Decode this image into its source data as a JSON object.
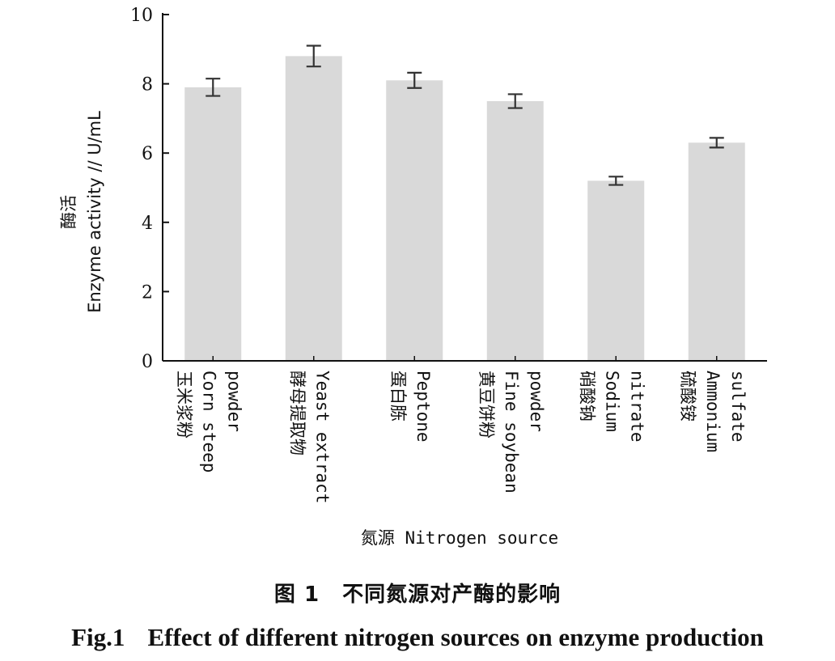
{
  "chart_data": {
    "type": "bar",
    "categories": [
      [
        "玉米浆粉",
        "Corn steep",
        "powder"
      ],
      [
        "酵母提取物",
        "Yeast extract"
      ],
      [
        "蛋白胨",
        "Peptone"
      ],
      [
        "黄豆饼粉",
        "Fine soybean",
        "powder"
      ],
      [
        "硝酸钠",
        "Sodium",
        "nitrate"
      ],
      [
        "硫酸铵",
        "Ammonium",
        "sulfate"
      ]
    ],
    "values": [
      7.9,
      8.8,
      8.1,
      7.5,
      5.2,
      6.3
    ],
    "errors": [
      0.25,
      0.3,
      0.22,
      0.2,
      0.12,
      0.14
    ],
    "ylim": [
      0,
      10
    ],
    "yticks": [
      0,
      2,
      4,
      6,
      8,
      10
    ],
    "ylabel": [
      "酶活",
      "Enzyme activity // U/mL"
    ],
    "xlabel": "氮源 Nitrogen source",
    "bar_color": "#d9d9d9",
    "error_color": "#333333",
    "grid": false
  },
  "caption": {
    "cn_number": "图 1",
    "cn_text": "不同氮源对产酶的影响",
    "en_number": "Fig.1",
    "en_text": "Effect of different nitrogen sources on enzyme production"
  }
}
